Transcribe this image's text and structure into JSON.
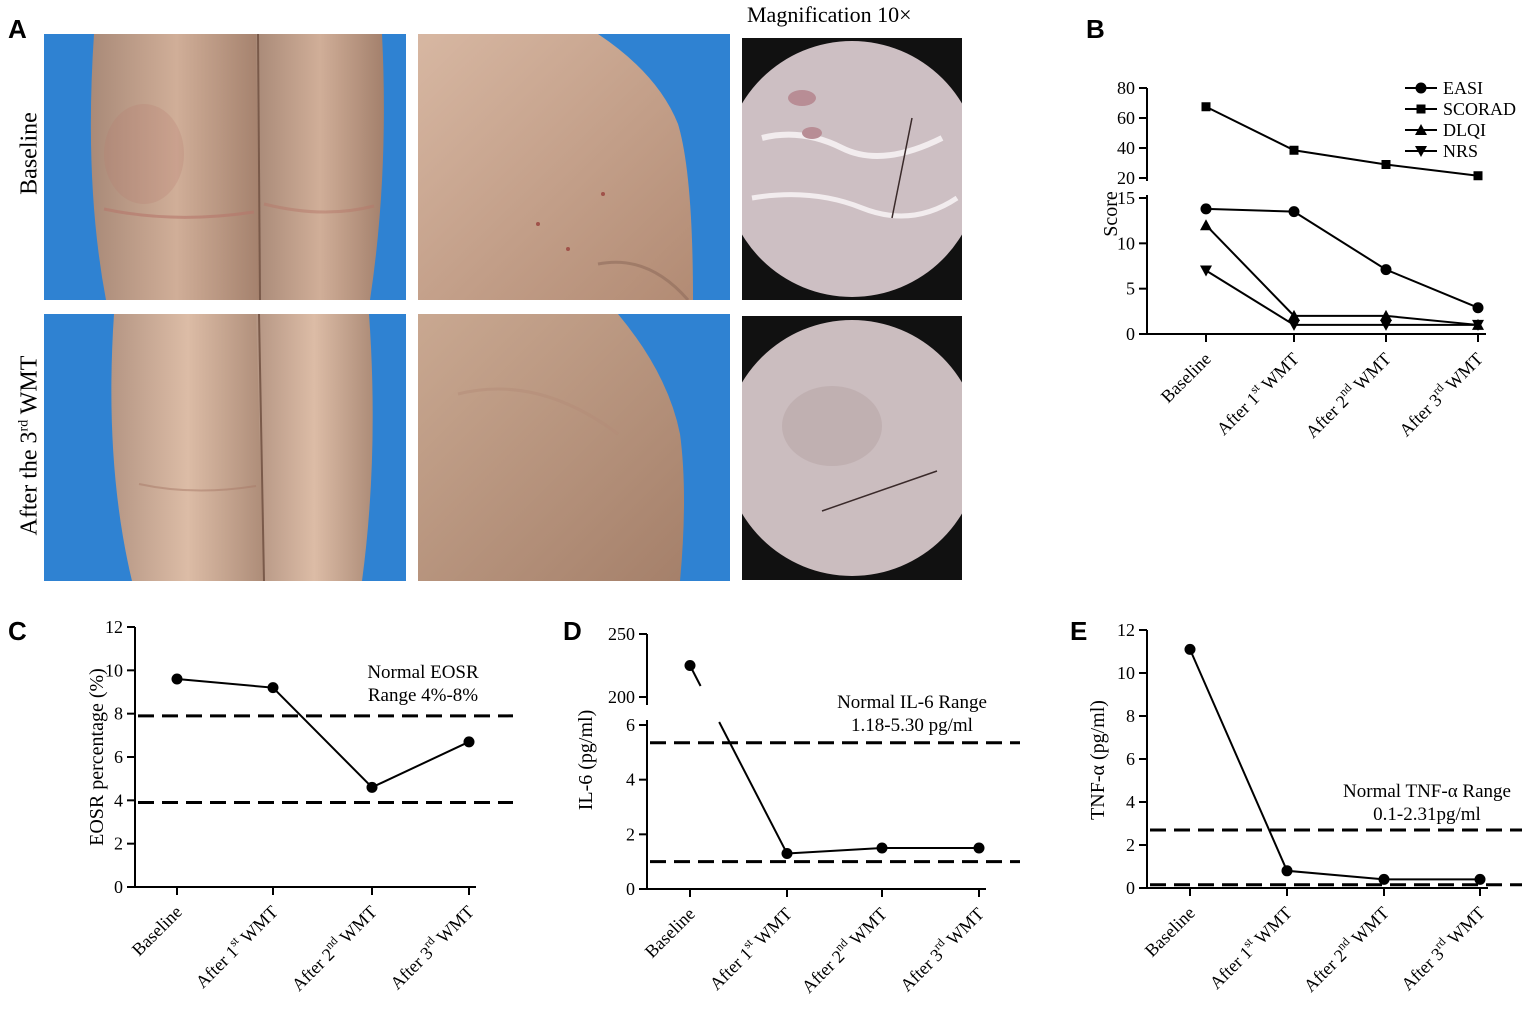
{
  "panels": {
    "A": "A",
    "B": "B",
    "C": "C",
    "D": "D",
    "E": "E"
  },
  "photos": {
    "row_labels": [
      "Baseline",
      "After the 3rd WMT"
    ],
    "magnification_label": "Magnification 10×",
    "skin_color": "#c8a38c",
    "background_color": "#2f7fcf"
  },
  "chart_data": [
    {
      "id": "B",
      "type": "line",
      "title": "",
      "xlabel": "",
      "ylabel": "Score",
      "categories": [
        {
          "pre": "Baseline",
          "sup": "",
          "post": ""
        },
        {
          "pre": "After 1",
          "sup": "st",
          "post": " WMT"
        },
        {
          "pre": "After 2",
          "sup": "nd",
          "post": " WMT"
        },
        {
          "pre": "After 3",
          "sup": "rd",
          "post": " WMT"
        }
      ],
      "y_axis_broken": true,
      "y_lower_range": [
        0,
        15
      ],
      "y_upper_range": [
        20,
        80
      ],
      "y_lower_ticks": [
        "0",
        "5",
        "10",
        "15"
      ],
      "y_upper_ticks": [
        "20",
        "40",
        "60",
        "80"
      ],
      "legend_position": "top-right",
      "series": [
        {
          "name": "EASI",
          "marker": "circle",
          "values": [
            13.8,
            13.5,
            7.1,
            2.9
          ]
        },
        {
          "name": "SCORAD",
          "marker": "square",
          "values": [
            67.5,
            38.5,
            29,
            21.5
          ]
        },
        {
          "name": "DLQI",
          "marker": "triangle-up",
          "values": [
            12,
            2,
            2,
            1
          ]
        },
        {
          "name": "NRS",
          "marker": "triangle-down",
          "values": [
            7,
            1,
            1,
            1
          ]
        }
      ]
    },
    {
      "id": "C",
      "type": "line",
      "title": "",
      "xlabel": "",
      "ylabel": "EOSR percentage (%)",
      "categories": [
        {
          "pre": "Baseline",
          "sup": "",
          "post": ""
        },
        {
          "pre": "After 1",
          "sup": "st",
          "post": " WMT"
        },
        {
          "pre": "After 2",
          "sup": "nd",
          "post": " WMT"
        },
        {
          "pre": "After 3",
          "sup": "rd",
          "post": " WMT"
        }
      ],
      "ylim": [
        0,
        12
      ],
      "y_ticks": [
        "0",
        "2",
        "4",
        "6",
        "8",
        "10",
        "12"
      ],
      "values": [
        9.6,
        9.2,
        4.6,
        6.7
      ],
      "reference_lines": [
        3.9,
        7.9
      ],
      "annotation": [
        "Normal EOSR",
        "Range 4%-8%"
      ]
    },
    {
      "id": "D",
      "type": "line",
      "title": "",
      "xlabel": "",
      "ylabel": "IL-6 (pg/ml)",
      "categories": [
        {
          "pre": "Baseline",
          "sup": "",
          "post": ""
        },
        {
          "pre": "After 1",
          "sup": "st",
          "post": " WMT"
        },
        {
          "pre": "After 2",
          "sup": "nd",
          "post": " WMT"
        },
        {
          "pre": "After 3",
          "sup": "rd",
          "post": " WMT"
        }
      ],
      "y_axis_broken": true,
      "y_lower_range": [
        0,
        6
      ],
      "y_upper_range": [
        200,
        250
      ],
      "y_lower_ticks": [
        "0",
        "2",
        "4",
        "6"
      ],
      "y_upper_ticks": [
        "200",
        "250"
      ],
      "values": [
        225,
        1.3,
        1.5,
        1.5
      ],
      "reference_lines": [
        1.0,
        5.35
      ],
      "annotation": [
        "Normal IL-6 Range",
        "1.18-5.30 pg/ml"
      ]
    },
    {
      "id": "E",
      "type": "line",
      "title": "",
      "xlabel": "",
      "ylabel": "TNF-α (pg/ml)",
      "categories": [
        {
          "pre": "Baseline",
          "sup": "",
          "post": ""
        },
        {
          "pre": "After 1",
          "sup": "st",
          "post": " WMT"
        },
        {
          "pre": "After 2",
          "sup": "nd",
          "post": " WMT"
        },
        {
          "pre": "After 3",
          "sup": "rd",
          "post": " WMT"
        }
      ],
      "ylim": [
        0,
        12
      ],
      "y_ticks": [
        "0",
        "2",
        "4",
        "6",
        "8",
        "10",
        "12"
      ],
      "values": [
        11.1,
        0.8,
        0.4,
        0.4
      ],
      "reference_lines": [
        0.15,
        2.7
      ],
      "annotation": [
        "Normal TNF-α  Range",
        "0.1-2.31pg/ml"
      ]
    }
  ]
}
